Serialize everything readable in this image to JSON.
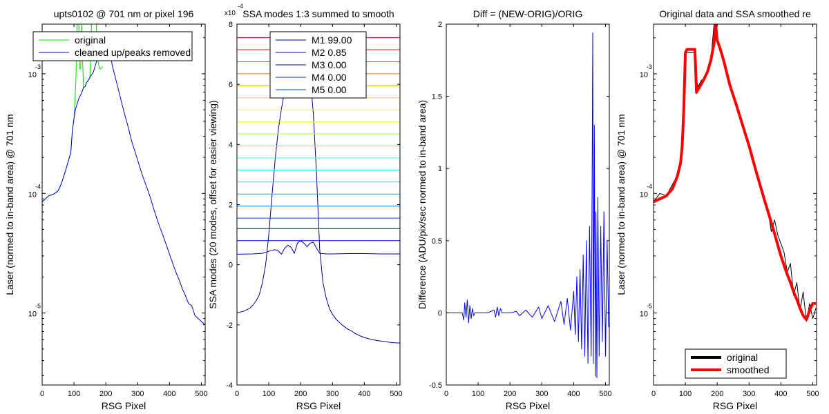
{
  "chart_data": [
    {
      "type": "line",
      "title": "upts0102 @ 701 nm or pixel 196",
      "xlabel": "RSG Pixel",
      "ylabel": "Laser (normed to in-band area) @ 701 nm",
      "xlim": [
        0,
        512
      ],
      "ylim": [
        2.5e-06,
        0.0026
      ],
      "yscale": "log",
      "xticks": [
        0,
        100,
        200,
        300,
        400,
        500
      ],
      "ytick_base": "10",
      "ytick_exponents": [
        "-3",
        "-4",
        "-5"
      ],
      "legend": "top-left",
      "series": [
        {
          "name": "original",
          "color": "#00dd00",
          "x": [
            0,
            20,
            40,
            50,
            60,
            75,
            90,
            95,
            100,
            103,
            106,
            110,
            115,
            118,
            121,
            124,
            127,
            130,
            135,
            140,
            145,
            150,
            155,
            160,
            170,
            175,
            180,
            185,
            190
          ],
          "y": [
            8.5e-05,
            9.5e-05,
            0.0001,
            0.000105,
            0.00012,
            0.00016,
            0.00022,
            0.00034,
            0.00042,
            0.0006,
            0.0009,
            0.0026,
            0.0026,
            0.0011,
            0.0011,
            0.0026,
            0.0013,
            0.00077,
            0.00078,
            0.00085,
            0.00088,
            0.00093,
            0.0026,
            0.0026,
            0.0026,
            0.0013,
            0.0011,
            0.0011,
            0.00115
          ]
        },
        {
          "name": "cleaned up/peaks removed",
          "color": "#0000cc",
          "x": [
            0,
            20,
            40,
            50,
            60,
            75,
            90,
            95,
            100,
            103,
            106,
            110,
            115,
            120,
            125,
            130,
            135,
            140,
            145,
            150,
            155,
            160,
            170,
            180,
            190,
            195,
            200,
            205,
            210,
            215,
            220,
            230,
            240,
            250,
            260,
            270,
            280,
            290,
            300,
            310,
            320,
            330,
            340,
            350,
            360,
            370,
            380,
            390,
            400,
            410,
            420,
            430,
            440,
            450,
            460,
            470,
            480,
            490,
            500,
            510
          ],
          "y": [
            8.5e-05,
            9.5e-05,
            0.0001,
            0.000105,
            0.00012,
            0.00016,
            0.00022,
            0.00034,
            0.00042,
            0.00048,
            0.00052,
            0.00056,
            0.00062,
            0.00066,
            0.0007,
            0.00077,
            0.00078,
            0.00085,
            0.00088,
            0.00093,
            0.00098,
            0.00102,
            0.00125,
            0.00155,
            0.00185,
            0.0019,
            0.00186,
            0.0018,
            0.00165,
            0.00145,
            0.00118,
            0.00093,
            0.00073,
            0.00057,
            0.00045,
            0.00036,
            0.00028,
            0.00023,
            0.00019,
            0.000155,
            0.00013,
            0.00011,
            9.2e-05,
            7.5e-05,
            6.2e-05,
            5.2e-05,
            4.4e-05,
            3.7e-05,
            3.1e-05,
            2.6e-05,
            2.2e-05,
            1.9e-05,
            1.6e-05,
            1.4e-05,
            1.2e-05,
            1.15e-05,
            9.5e-06,
            9e-06,
            8.5e-06,
            8e-06
          ]
        }
      ]
    },
    {
      "type": "line",
      "title": "SSA modes 1:3 summed to smooth",
      "xlabel": "RSG Pixel",
      "ylabel": "SSA modes (20 modes, offset for easier viewing)",
      "xlim": [
        0,
        512
      ],
      "ylim": [
        -4,
        8
      ],
      "xticks": [
        0,
        100,
        200,
        300,
        400,
        500
      ],
      "yticks": [
        -4,
        -2,
        0,
        2,
        4,
        6,
        8
      ],
      "y_multiplier_base": "x10",
      "y_multiplier_exp": "-4",
      "legend": "top-center",
      "series": [
        {
          "name": "M1 99.00",
          "color": "#00008f",
          "x": [
            0,
            20,
            40,
            50,
            60,
            70,
            80,
            90,
            100,
            110,
            120,
            130,
            140,
            150,
            160,
            170,
            180,
            190,
            200,
            210,
            220,
            230,
            240,
            250,
            260,
            270,
            280,
            290,
            300,
            310,
            320,
            330,
            340,
            350,
            360,
            370,
            380,
            390,
            400,
            410,
            420,
            430,
            440,
            460,
            480,
            500,
            512
          ],
          "y": [
            -1.6,
            -1.55,
            -1.45,
            -1.35,
            -1.2,
            -1.0,
            -0.6,
            0.0,
            1.0,
            2.3,
            3.5,
            4.5,
            5.2,
            5.8,
            6.3,
            6.7,
            7.0,
            7.2,
            7.3,
            7.2,
            6.9,
            6.3,
            5.0,
            3.0,
            0.5,
            -0.6,
            -1.1,
            -1.45,
            -1.65,
            -1.8,
            -1.9,
            -2.0,
            -2.08,
            -2.15,
            -2.2,
            -2.28,
            -2.33,
            -2.38,
            -2.42,
            -2.45,
            -2.48,
            -2.5,
            -2.52,
            -2.55,
            -2.58,
            -2.6,
            -2.6
          ]
        },
        {
          "name": "M2 0.85",
          "color": "#0000bf",
          "x": [
            0,
            50,
            80,
            100,
            110,
            120,
            130,
            140,
            150,
            160,
            170,
            180,
            190,
            200,
            210,
            220,
            230,
            240,
            250,
            260,
            280,
            300,
            350,
            400,
            450,
            500,
            512
          ],
          "y": [
            0.35,
            0.36,
            0.38,
            0.45,
            0.48,
            0.5,
            0.46,
            0.35,
            0.55,
            0.65,
            0.58,
            0.38,
            0.72,
            0.8,
            0.72,
            0.6,
            0.72,
            0.75,
            0.55,
            0.38,
            0.36,
            0.36,
            0.37,
            0.37,
            0.36,
            0.36,
            0.36
          ]
        },
        {
          "name": "M3 0.00",
          "color": "#0000ef",
          "x": [
            0,
            512
          ],
          "y": [
            0.8,
            0.8
          ]
        },
        {
          "name": "M4 0.00",
          "color": "#001fff",
          "x": [
            0,
            512
          ],
          "y": [
            1.2,
            1.2
          ]
        },
        {
          "name": "M5 0.00",
          "color": "#004fff",
          "x": [
            0,
            512
          ],
          "y": [
            1.55,
            1.55
          ]
        },
        {
          "color": "#007fff",
          "x": [
            0,
            512
          ],
          "y": [
            1.95,
            1.95
          ]
        },
        {
          "color": "#00afff",
          "x": [
            0,
            512
          ],
          "y": [
            2.35,
            2.35
          ]
        },
        {
          "color": "#00dfff",
          "x": [
            0,
            512
          ],
          "y": [
            2.75,
            2.75
          ]
        },
        {
          "color": "#10ffef",
          "x": [
            0,
            512
          ],
          "y": [
            3.15,
            3.15
          ]
        },
        {
          "color": "#40ffbf",
          "x": [
            0,
            512
          ],
          "y": [
            3.55,
            3.55
          ]
        },
        {
          "color": "#70ff8f",
          "x": [
            0,
            512
          ],
          "y": [
            3.95,
            3.95
          ]
        },
        {
          "color": "#9fff60",
          "x": [
            0,
            512
          ],
          "y": [
            4.35,
            4.35
          ]
        },
        {
          "color": "#cfff30",
          "x": [
            0,
            512
          ],
          "y": [
            4.75,
            4.75
          ]
        },
        {
          "color": "#ffff00",
          "x": [
            0,
            512
          ],
          "y": [
            5.15,
            5.15
          ]
        },
        {
          "color": "#ffcf00",
          "x": [
            0,
            512
          ],
          "y": [
            5.55,
            5.55
          ]
        },
        {
          "color": "#ff9f00",
          "x": [
            0,
            512
          ],
          "y": [
            5.95,
            5.95
          ]
        },
        {
          "color": "#ff6f00",
          "x": [
            0,
            512
          ],
          "y": [
            6.35,
            6.35
          ]
        },
        {
          "color": "#ff3f00",
          "x": [
            0,
            512
          ],
          "y": [
            6.75,
            6.75
          ]
        },
        {
          "color": "#ff0f00",
          "x": [
            0,
            512
          ],
          "y": [
            7.15,
            7.15
          ]
        },
        {
          "color": "#cf0000",
          "x": [
            0,
            512
          ],
          "y": [
            7.55,
            7.55
          ]
        }
      ]
    },
    {
      "type": "line",
      "title": "Diff = (NEW-ORIG)/ORIG",
      "xlabel": "RSG Pixel",
      "ylabel": "Difference (ADU/pix/sec normed to in-band area)",
      "xlim": [
        0,
        512
      ],
      "ylim": [
        -0.5,
        2
      ],
      "xticks": [
        0,
        100,
        200,
        300,
        400,
        500
      ],
      "yticks": [
        -0.5,
        0,
        0.5,
        1,
        1.5,
        2
      ],
      "series": [
        {
          "color": "#0000ff",
          "x": [
            0,
            50,
            55,
            58,
            62,
            66,
            70,
            74,
            78,
            82,
            86,
            90,
            130,
            150,
            155,
            160,
            165,
            170,
            175,
            200,
            220,
            230,
            250,
            270,
            290,
            300,
            320,
            340,
            360,
            370,
            380,
            390,
            400,
            405,
            410,
            415,
            420,
            425,
            430,
            435,
            440,
            445,
            450,
            455,
            458,
            460,
            462,
            465,
            468,
            470,
            473,
            476,
            480,
            485,
            490,
            495,
            500,
            505,
            510
          ],
          "y": [
            0,
            0,
            -0.05,
            0.07,
            -0.03,
            0.09,
            -0.07,
            0.05,
            -0.04,
            0.03,
            -0.02,
            0,
            0,
            0.02,
            -0.03,
            0.04,
            -0.02,
            0.03,
            0,
            0,
            0.01,
            -0.02,
            0.02,
            -0.03,
            0.04,
            -0.04,
            0.05,
            -0.06,
            0.08,
            -0.08,
            0.1,
            -0.12,
            0.15,
            -0.15,
            0.25,
            -0.2,
            0.3,
            -0.25,
            0.4,
            -0.3,
            0.5,
            -0.35,
            0.6,
            -0.3,
            0.9,
            1.94,
            -0.35,
            1.3,
            -0.44,
            0.7,
            -0.45,
            0.8,
            -0.3,
            0.6,
            -0.2,
            0.7,
            -0.3,
            0.5,
            -0.1
          ]
        }
      ]
    },
    {
      "type": "line",
      "title": "Original data and SSA smoothed re",
      "xlabel": "RSG Pixel",
      "ylabel": "Laser (normed to in-band area) @ 701 nm",
      "xlim": [
        0,
        512
      ],
      "ylim": [
        2.5e-06,
        0.0026
      ],
      "yscale": "log",
      "xticks": [
        0,
        100,
        200,
        300,
        400,
        500
      ],
      "ytick_base": "10",
      "ytick_exponents": [
        "-3",
        "-4",
        "-5"
      ],
      "legend": "bottom-center",
      "series": [
        {
          "name": "original",
          "color": "#000000",
          "x": [
            0,
            20,
            40,
            60,
            80,
            90,
            95,
            100,
            110,
            130,
            135,
            140,
            150,
            160,
            170,
            180,
            190,
            195,
            200,
            210,
            220,
            240,
            260,
            280,
            300,
            320,
            340,
            350,
            360,
            370,
            380,
            390,
            400,
            410,
            420,
            430,
            440,
            450,
            460,
            470,
            480,
            490,
            500,
            510
          ],
          "y": [
            8.5e-05,
            0.0001,
            9.5e-05,
            0.00012,
            0.00015,
            0.00025,
            0.0006,
            0.0015,
            0.0015,
            0.0015,
            0.0009,
            0.00078,
            0.00088,
            0.00093,
            0.00105,
            0.0013,
            0.0026,
            0.0026,
            0.0019,
            0.0016,
            0.0013,
            0.0008,
            0.00055,
            0.00037,
            0.00025,
            0.00016,
            0.00011,
            8.5e-05,
            7e-05,
            4.8e-05,
            6e-05,
            4.5e-05,
            3.8e-05,
            3.2e-05,
            2.2e-05,
            2.6e-05,
            1.4e-05,
            1.8e-05,
            1.05e-05,
            1.5e-05,
            8.5e-06,
            1.2e-05,
            9e-06,
            1.1e-05
          ]
        },
        {
          "name": "smoothed",
          "color": "#ff0000",
          "x": [
            0,
            20,
            40,
            60,
            75,
            85,
            90,
            95,
            100,
            105,
            110,
            115,
            120,
            125,
            130,
            135,
            140,
            150,
            160,
            170,
            180,
            190,
            195,
            200,
            210,
            220,
            240,
            260,
            280,
            300,
            320,
            340,
            350,
            360,
            370,
            380,
            390,
            400,
            410,
            420,
            430,
            440,
            450,
            460,
            470,
            480,
            490,
            500,
            510
          ],
          "y": [
            8.5e-05,
            9e-05,
            9.5e-05,
            0.00011,
            0.00014,
            0.00018,
            0.00025,
            0.0005,
            0.0015,
            0.0016,
            0.0016,
            0.0016,
            0.0016,
            0.0016,
            0.0016,
            0.0007,
            0.00074,
            0.00082,
            0.00092,
            0.00105,
            0.0013,
            0.0018,
            0.0026,
            0.0019,
            0.0016,
            0.0013,
            0.0008,
            0.00055,
            0.00037,
            0.00025,
            0.00016,
            0.000105,
            8.5e-05,
            7e-05,
            5.7e-05,
            4.6e-05,
            3.7e-05,
            3e-05,
            2.5e-05,
            2.1e-05,
            1.8e-05,
            1.5e-05,
            1.3e-05,
            1.1e-05,
            9.5e-06,
            8.8e-06,
            1.05e-05,
            1.2e-05,
            1.2e-05
          ]
        }
      ]
    }
  ]
}
